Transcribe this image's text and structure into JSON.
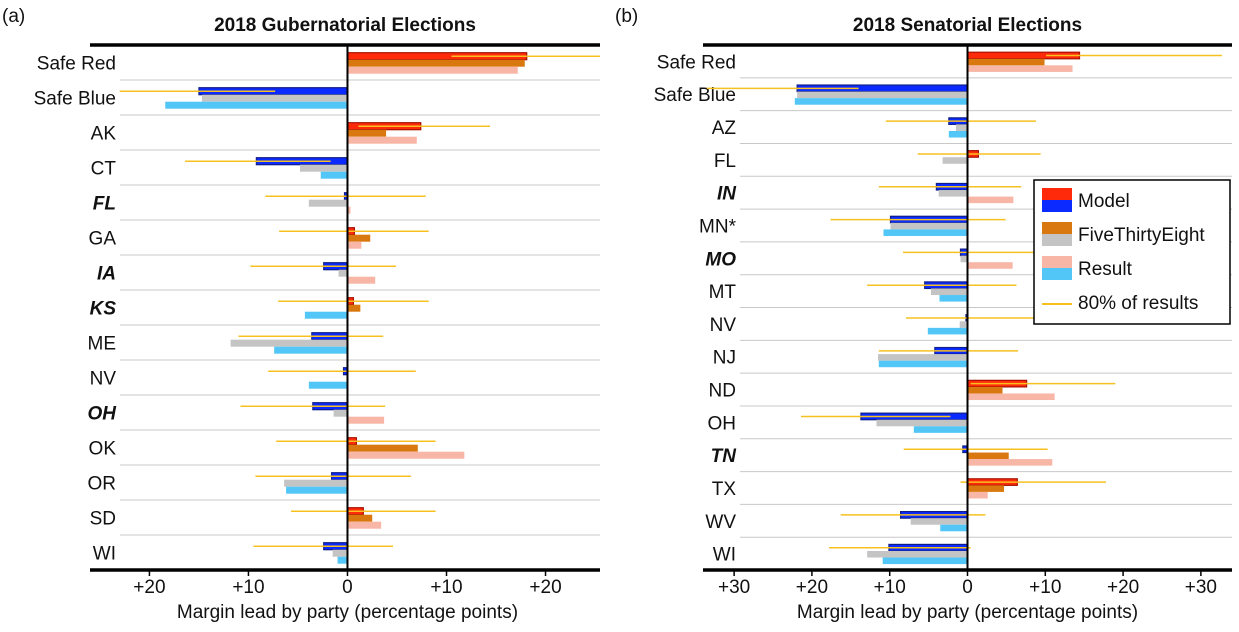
{
  "chart_data": [
    {
      "type": "bar",
      "panel": "(a)",
      "title": "2018 Gubernatorial Elections",
      "x_label": "Margin lead by party (percentage points)",
      "categories": [
        "Safe Red",
        "Safe Blue",
        "AK",
        "CT",
        "FL",
        "GA",
        "IA",
        "KS",
        "ME",
        "NV",
        "OH",
        "OK",
        "OR",
        "SD",
        "WI"
      ],
      "highlighted_categories": [
        "FL",
        "IA",
        "KS",
        "OH"
      ],
      "highlight_color": "#1e8c32",
      "xlim": [
        -26,
        25.5
      ],
      "xticks": [
        {
          "value": -20,
          "label": "+20"
        },
        {
          "value": -10,
          "label": "+10"
        },
        0,
        {
          "value": 10,
          "label": "+10"
        },
        {
          "value": 20,
          "label": "+20"
        }
      ],
      "negative_tick_color": "#1f3fe0",
      "positive_tick_color": "#ee2a10",
      "series": [
        {
          "name": "Model",
          "color": "#ff2a0a",
          "negative_color": "#0a2aff",
          "values": [
            18.1,
            -15,
            7.4,
            -9.2,
            -0.3,
            0.7,
            -2.4,
            0.6,
            -3.6,
            -0.4,
            -3.5,
            0.9,
            -1.6,
            1.6,
            -2.4
          ]
        },
        {
          "name": "FiveThirtyEight",
          "color": "#d8780e",
          "negative_color": "#c4c4c4",
          "values": [
            17.9,
            -14.7,
            3.9,
            -4.8,
            -3.9,
            2.3,
            -0.9,
            1.3,
            -11.8,
            0,
            -1.4,
            7.1,
            -6.4,
            2.5,
            -1.5
          ]
        },
        {
          "name": "Result",
          "color": "#f8b6a6",
          "negative_color": "#52c6f6",
          "values": [
            17.2,
            -18.4,
            7,
            -2.7,
            0.3,
            1.4,
            2.8,
            -4.3,
            -7.4,
            -3.9,
            3.7,
            11.8,
            -6.2,
            3.4,
            -1
          ]
        },
        {
          "name": "80% of results",
          "color": "#f7c021",
          "low": [
            10.5,
            -23,
            1.1,
            -16.4,
            -8.3,
            -6.9,
            -9.8,
            -7,
            -11,
            -8,
            -10.8,
            -7.2,
            -9.3,
            -5.7,
            -9.5
          ],
          "high": [
            25.5,
            -7.3,
            14.4,
            -1.7,
            7.9,
            8.2,
            4.9,
            8.2,
            3.6,
            6.9,
            3.8,
            8.9,
            6.4,
            8.9,
            4.6
          ]
        }
      ]
    },
    {
      "type": "bar",
      "panel": "(b)",
      "title": "2018 Senatorial Elections",
      "x_label": "Margin lead by party (percentage points)",
      "categories": [
        "Safe Red",
        "Safe Blue",
        "AZ",
        "FL",
        "IN",
        "MN*",
        "MO",
        "MT",
        "NV",
        "NJ",
        "ND",
        "OH",
        "TN",
        "TX",
        "WV",
        "WI"
      ],
      "highlighted_categories": [
        "IN",
        "MO",
        "TN"
      ],
      "highlight_color": "#1e8c32",
      "xlim": [
        -34,
        34
      ],
      "xticks": [
        {
          "value": -30,
          "label": "+30"
        },
        {
          "value": -20,
          "label": "+20"
        },
        {
          "value": -10,
          "label": "+10"
        },
        0,
        {
          "value": 10,
          "label": "+10"
        },
        {
          "value": 20,
          "label": "+20"
        },
        {
          "value": 30,
          "label": "+30"
        }
      ],
      "negative_tick_color": "#1f3fe0",
      "positive_tick_color": "#ee2a10",
      "legend": "right",
      "series": [
        {
          "name": "Model",
          "color": "#ff2a0a",
          "negative_color": "#0a2aff",
          "values": [
            14.4,
            -21.9,
            -2.4,
            1.4,
            -4,
            -9.9,
            -0.9,
            -5.5,
            -0.2,
            -4.2,
            7.6,
            -13.7,
            -0.6,
            6.4,
            -8.6,
            -10.1
          ]
        },
        {
          "name": "FiveThirtyEight",
          "color": "#d8780e",
          "negative_color": "#c4c4c4",
          "values": [
            9.9,
            -21.9,
            -1.5,
            -3.2,
            -3.7,
            -9.9,
            -0.9,
            -4.7,
            -1,
            -11.5,
            4.5,
            -11.7,
            5.3,
            4.7,
            -7.3,
            -12.9
          ]
        },
        {
          "name": "Result",
          "color": "#f8b6a6",
          "negative_color": "#52c6f6",
          "values": [
            13.5,
            -22.2,
            -2.4,
            0,
            5.9,
            -10.8,
            5.8,
            -3.6,
            -5.1,
            -11.4,
            11.2,
            -6.9,
            10.9,
            2.6,
            -3.5,
            -10.9
          ]
        },
        {
          "name": "80% of results",
          "color": "#f7c021",
          "low": [
            10.1,
            -33.5,
            -10.5,
            -6.4,
            -11.4,
            -17.6,
            -8.3,
            -12.9,
            -7.9,
            -11.4,
            0.4,
            -21.4,
            -8.2,
            -0.9,
            -16.3,
            -17.8
          ],
          "high": [
            32.7,
            -14,
            8.8,
            9.4,
            6.9,
            4.9,
            9.6,
            6.3,
            10.9,
            6.5,
            19,
            -2.2,
            10.3,
            17.8,
            2.3,
            0.4
          ]
        }
      ]
    }
  ]
}
